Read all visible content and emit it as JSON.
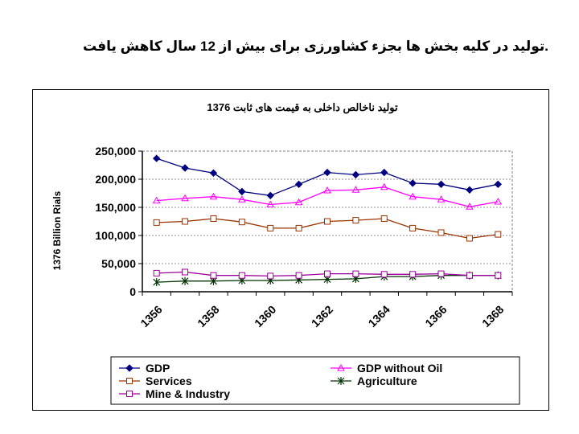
{
  "slide": {
    "title": ".تولید در کلیه بخش ها بجزء کشاورزی برای بیش از 12 سال کاهش یافت"
  },
  "chart_data": {
    "type": "line",
    "title": "تولید ناخالص داخلی به قیمت های ثابت 1376",
    "ylabel": "1376 Billion Rials",
    "xlabel": "",
    "ylim": [
      0,
      250000
    ],
    "yticks": [
      0,
      50000,
      100000,
      150000,
      200000,
      250000
    ],
    "ytick_labels": [
      "0",
      "50,000",
      "100,000",
      "150,000",
      "200,000",
      "250,000"
    ],
    "x": [
      1356,
      1357,
      1358,
      1359,
      1360,
      1361,
      1362,
      1363,
      1364,
      1365,
      1366,
      1367,
      1368
    ],
    "xtick_labels": [
      "1356",
      "1358",
      "1360",
      "1362",
      "1364",
      "1366",
      "1368"
    ],
    "grid": true,
    "series": [
      {
        "name": "GDP",
        "color": "#000080",
        "marker": "diamond",
        "values": [
          237000,
          220000,
          211000,
          178000,
          171000,
          191000,
          212000,
          208000,
          212000,
          193000,
          191000,
          181000,
          191000
        ]
      },
      {
        "name": "GDP without Oil",
        "color": "#ff00ff",
        "marker": "triangle",
        "values": [
          162000,
          166000,
          169000,
          164000,
          155000,
          159000,
          180000,
          181000,
          186000,
          169000,
          164000,
          151000,
          160000
        ]
      },
      {
        "name": "Services",
        "color": "#993300",
        "marker": "square",
        "values": [
          123000,
          125000,
          130000,
          124000,
          113000,
          113000,
          125000,
          127000,
          130000,
          113000,
          105000,
          95000,
          102000
        ]
      },
      {
        "name": "Agriculture",
        "color": "#003300",
        "marker": "star",
        "values": [
          17000,
          19000,
          19000,
          20000,
          20000,
          21000,
          22000,
          23000,
          27000,
          27000,
          29000,
          29000,
          29000
        ]
      },
      {
        "name": "Mine & Industry",
        "color": "#990099",
        "marker": "square",
        "values": [
          33000,
          35000,
          29000,
          29000,
          28000,
          29000,
          32000,
          32000,
          31000,
          31000,
          32000,
          29000,
          29000
        ]
      }
    ]
  }
}
